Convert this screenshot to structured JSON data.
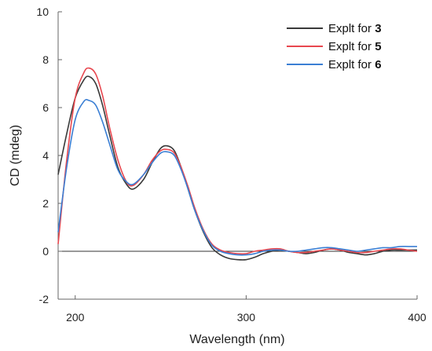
{
  "chart_data": {
    "type": "line",
    "title": "",
    "xlabel": "Wavelength (nm)",
    "ylabel": "CD (mdeg)",
    "xlim": [
      190,
      400
    ],
    "ylim": [
      -2,
      10
    ],
    "xticks": [
      200,
      300,
      400
    ],
    "yticks": [
      -2,
      0,
      2,
      4,
      6,
      8,
      10
    ],
    "grid": false,
    "zero_line": true,
    "legend_position": "top-right",
    "series": [
      {
        "name_prefix": "Explt for ",
        "name_number": "3",
        "color": "#3a3a3a",
        "x": [
          190,
          195,
          200,
          205,
          208,
          212,
          216,
          220,
          225,
          230,
          234,
          240,
          245,
          250,
          254,
          258,
          262,
          266,
          270,
          275,
          280,
          285,
          290,
          295,
          300,
          305,
          310,
          315,
          320,
          325,
          330,
          335,
          340,
          345,
          350,
          355,
          360,
          365,
          370,
          375,
          380,
          385,
          390,
          395,
          400
        ],
        "y": [
          3.2,
          4.9,
          6.4,
          7.15,
          7.3,
          7.0,
          6.1,
          4.9,
          3.5,
          2.8,
          2.6,
          3.0,
          3.7,
          4.3,
          4.4,
          4.2,
          3.5,
          2.6,
          1.7,
          0.8,
          0.15,
          -0.15,
          -0.3,
          -0.35,
          -0.35,
          -0.25,
          -0.1,
          0.0,
          0.05,
          0.0,
          -0.05,
          -0.1,
          -0.05,
          0.05,
          0.1,
          0.05,
          -0.05,
          -0.1,
          -0.15,
          -0.1,
          0.0,
          0.05,
          0.05,
          0.05,
          0.05
        ]
      },
      {
        "name_prefix": "Explt for ",
        "name_number": "5",
        "color": "#e8474f",
        "x": [
          190,
          195,
          200,
          205,
          208,
          212,
          216,
          220,
          225,
          230,
          234,
          240,
          245,
          250,
          254,
          258,
          262,
          266,
          270,
          275,
          280,
          285,
          290,
          295,
          300,
          305,
          310,
          315,
          320,
          325,
          330,
          335,
          340,
          345,
          350,
          355,
          360,
          365,
          370,
          375,
          380,
          385,
          390,
          395,
          400
        ],
        "y": [
          0.3,
          3.8,
          6.4,
          7.45,
          7.65,
          7.4,
          6.5,
          5.2,
          3.8,
          2.9,
          2.75,
          3.2,
          3.8,
          4.2,
          4.25,
          4.1,
          3.5,
          2.7,
          1.8,
          0.9,
          0.3,
          0.05,
          -0.05,
          -0.1,
          -0.1,
          0.0,
          0.05,
          0.1,
          0.1,
          0.0,
          -0.05,
          -0.05,
          0.0,
          0.05,
          0.1,
          0.05,
          0.0,
          -0.05,
          -0.05,
          0.0,
          0.05,
          0.1,
          0.1,
          0.05,
          0.0
        ]
      },
      {
        "name_prefix": "Explt for ",
        "name_number": "6",
        "color": "#3b7fd4",
        "x": [
          190,
          195,
          200,
          205,
          208,
          212,
          216,
          220,
          225,
          230,
          234,
          240,
          245,
          250,
          254,
          258,
          262,
          266,
          270,
          275,
          280,
          285,
          290,
          295,
          300,
          305,
          310,
          315,
          320,
          325,
          330,
          335,
          340,
          345,
          350,
          355,
          360,
          365,
          370,
          375,
          380,
          385,
          390,
          395,
          400
        ],
        "y": [
          0.8,
          3.5,
          5.5,
          6.25,
          6.3,
          6.1,
          5.4,
          4.5,
          3.4,
          2.9,
          2.8,
          3.2,
          3.7,
          4.1,
          4.15,
          4.0,
          3.4,
          2.6,
          1.7,
          0.85,
          0.25,
          0.0,
          -0.1,
          -0.15,
          -0.15,
          -0.1,
          0.0,
          0.05,
          0.05,
          0.0,
          0.0,
          0.05,
          0.1,
          0.15,
          0.15,
          0.1,
          0.05,
          0.0,
          0.05,
          0.1,
          0.15,
          0.15,
          0.2,
          0.2,
          0.2
        ]
      }
    ]
  }
}
